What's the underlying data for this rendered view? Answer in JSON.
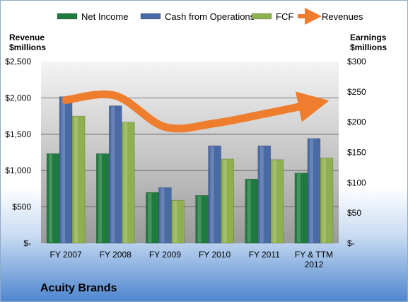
{
  "company_title": "Acuity Brands",
  "legend": [
    {
      "name": "Net Income",
      "key": "net_income"
    },
    {
      "name": "Cash from Operations",
      "key": "cfo"
    },
    {
      "name": "FCF",
      "key": "fcf"
    },
    {
      "name": "Revenues",
      "key": "revenues"
    }
  ],
  "colors": {
    "net_income": "#1f7a3f",
    "cfo": "#4a6aa6",
    "fcf": "#8fb04f",
    "revenues": "#ee7d2e",
    "plot_bg_top": "#f4f4f4",
    "plot_bg_bottom": "#9a9a9a"
  },
  "chart_data": {
    "type": "bar",
    "categories": [
      "FY 2007",
      "FY 2008",
      "FY 2009",
      "FY 2010",
      "FY 2011",
      "FY & TTM 2012"
    ],
    "series": [
      {
        "name": "Net Income",
        "axis": "right",
        "values": [
          148,
          148,
          84,
          79,
          106,
          116
        ]
      },
      {
        "name": "Cash from Operations",
        "axis": "right",
        "values": [
          242,
          227,
          92,
          161,
          161,
          173
        ]
      },
      {
        "name": "FCF",
        "axis": "right",
        "values": [
          210,
          200,
          71,
          139,
          138,
          141
        ]
      },
      {
        "name": "Revenues",
        "axis": "left",
        "type": "line-arrow",
        "values": [
          1970,
          2030,
          1600,
          1650,
          1780,
          1920
        ]
      }
    ],
    "ylabel_left": [
      "Revenue",
      "$millions"
    ],
    "ylabel_right": [
      "Earnings",
      "$millions"
    ],
    "ylim_left": [
      0,
      2500
    ],
    "ylim_right": [
      0,
      300
    ],
    "yticks_left": [
      "$-",
      "$500",
      "$1,000",
      "$1,500",
      "$2,000",
      "$2,500"
    ],
    "yticks_right": [
      "$-",
      "$50",
      "$100",
      "$150",
      "$200",
      "$250",
      "$300"
    ],
    "grid": true,
    "legend_position": "top"
  }
}
